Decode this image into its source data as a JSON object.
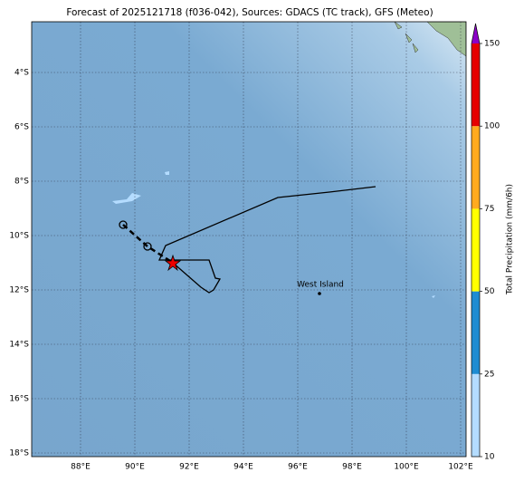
{
  "title": "Forecast of 2025121718 (f036-042), Sources: GDACS (TC track), GFS (Meteo)",
  "map": {
    "lat_labels": [
      "4°S",
      "6°S",
      "8°S",
      "10°S",
      "12°S",
      "14°S",
      "16°S",
      "18°S"
    ],
    "lon_labels": [
      "88°E",
      "90°E",
      "92°E",
      "94°E",
      "96°E",
      "98°E",
      "100°E",
      "102°E"
    ],
    "place_label": "West Island"
  },
  "colorbar": {
    "label": "Total Precipitation (mm/6h)",
    "ticks": [
      "10",
      "25",
      "50",
      "75",
      "100",
      "150"
    ],
    "colors": [
      "#b4dcff",
      "#1e8cd2",
      "#ffff00",
      "#ffaa1e",
      "#e60000"
    ],
    "extend_color": "#8c00c8"
  }
}
